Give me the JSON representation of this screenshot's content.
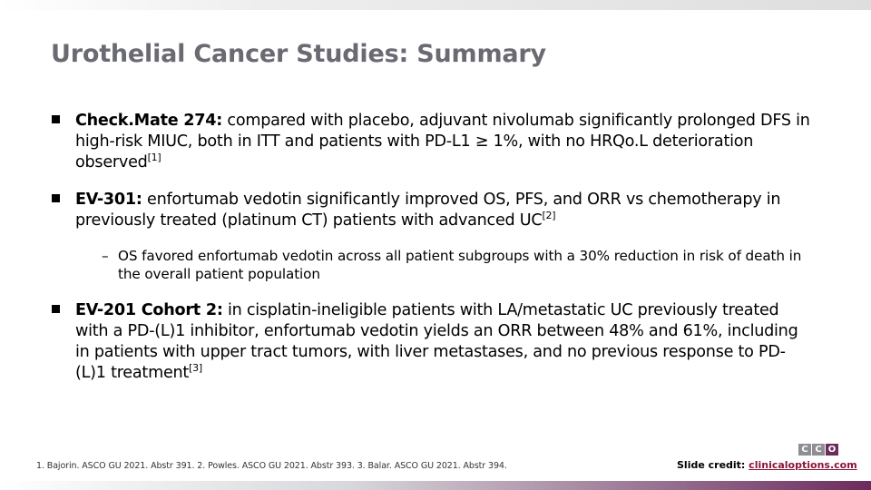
{
  "slide": {
    "title": "Urothelial Cancer Studies: Summary",
    "bullets": [
      {
        "lead": "Check.Mate 274:",
        "text": " compared with placebo, adjuvant nivolumab significantly prolonged DFS in high-risk MIUC, both in ITT and patients with PD-L1 ≥ 1%, with no HRQo.L deterioration observed",
        "ref": "[1]"
      },
      {
        "lead": "EV-301:",
        "text": " enfortumab vedotin significantly improved OS, PFS, and ORR vs chemotherapy in previously treated (platinum CT) patients with advanced UC",
        "ref": "[2]",
        "sub": {
          "dash": "–",
          "text": "OS favored enfortumab vedotin across all patient subgroups with a 30% reduction in risk of death in the overall patient population"
        }
      },
      {
        "lead": "EV-201 Cohort 2:",
        "text": " in cisplatin-ineligible patients with LA/metastatic UC previously treated with a PD-(L)1 inhibitor, enfortumab vedotin yields an ORR between 48% and 61%, including in patients with upper tract tumors, with liver metastases, and no previous response to PD-(L)1 treatment",
        "ref": "[3]"
      }
    ],
    "footnote": "1. Bajorin. ASCO GU 2021. Abstr 391. 2. Powles. ASCO GU 2021. Abstr 393. 3. Balar. ASCO GU 2021. Abstr 394.",
    "credit_label": "Slide credit: ",
    "credit_link": "clinicaloptions.com",
    "logo_letters": [
      "C",
      "C",
      "O"
    ]
  },
  "colors": {
    "title": "#6a6a72",
    "accent": "#6b2c5c",
    "link": "#8a1538"
  }
}
